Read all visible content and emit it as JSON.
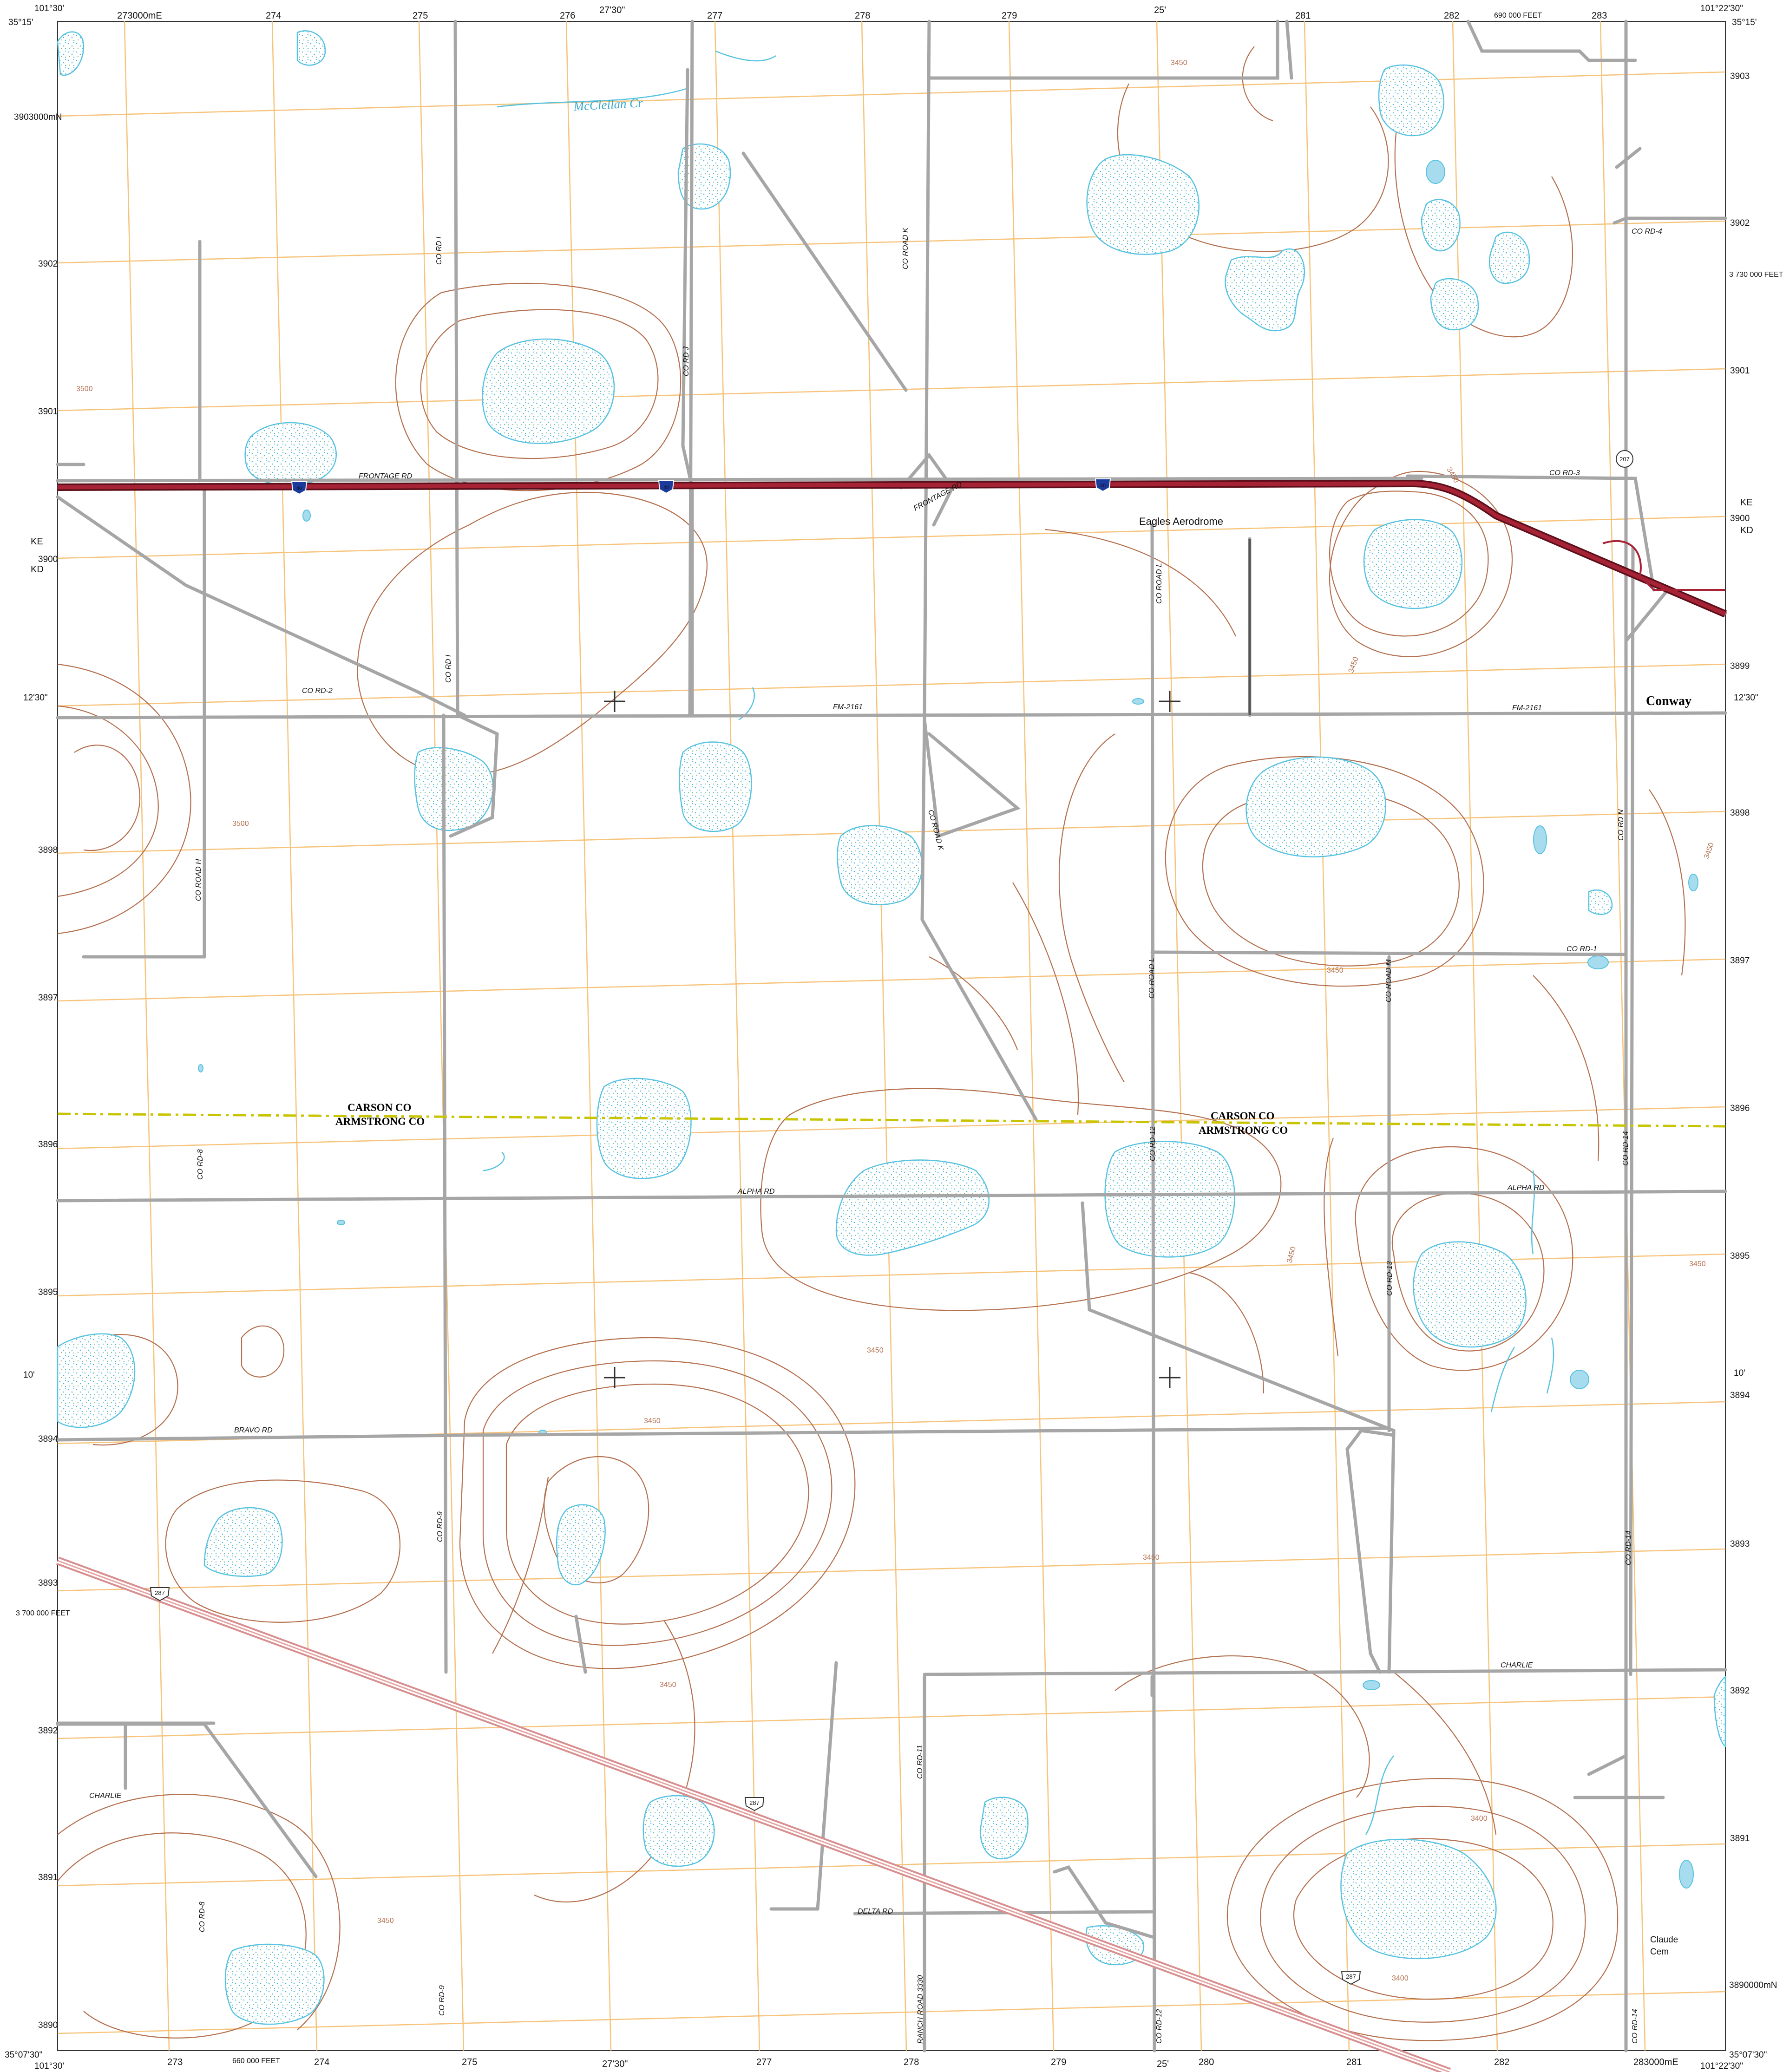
{
  "colors": {
    "background": "#ffffff",
    "grid": "#f6c37a",
    "contour": "#b4704f",
    "road": "#a6a6a6",
    "interstate": "#8e1b2b",
    "us_highway": "#e0a6a6",
    "water": "#58c3e0",
    "boundary": "#c9c400",
    "text": "#111111"
  },
  "corners": {
    "top_left": "101°30'",
    "top_left_lat": "35°15'",
    "top_right": "101°22'30\"",
    "top_right_lat": "35°15'",
    "bottom_left": "101°30'",
    "bottom_left_lat": "35°07'30\"",
    "bottom_right": "101°22'30\"",
    "bottom_right_lat": "35°07'30\""
  },
  "top_ticks": [
    "273000mE",
    "274",
    "275",
    "276",
    "27'30\"",
    "277",
    "278",
    "279",
    "25'",
    "281",
    "282",
    "690 000 FEET",
    "283"
  ],
  "bottom_ticks": [
    "273",
    "660 000 FEET",
    "274",
    "275",
    "27'30\"",
    "277",
    "278",
    "279",
    "25'",
    "280",
    "281",
    "282",
    "283000mE"
  ],
  "left_ticks": [
    "3903000mN",
    "3902",
    "3901",
    "3900",
    "12'30\"",
    "3898",
    "3897",
    "3896",
    "3895",
    "10'",
    "3894",
    "3893",
    "3 700 000 FEET",
    "3892",
    "3891",
    "3890"
  ],
  "right_ticks": [
    "3903",
    "3902",
    "3 730 000 FEET",
    "3901",
    "3900",
    "3899",
    "12'30\"",
    "3898",
    "3897",
    "3896",
    "3895",
    "10'",
    "3894",
    "3893",
    "3892",
    "3891",
    "3890000mN"
  ],
  "edge_labels": {
    "left_ke": "KE",
    "left_kd": "KD",
    "right_ke": "KE",
    "right_kd": "KD"
  },
  "place_names": {
    "creek": "McClellan Cr",
    "aerodrome": "Eagles Aerodrome",
    "town": "Conway",
    "cemetery_line1": "Claude",
    "cemetery_line2": "Cem"
  },
  "county_labels": {
    "north_1": "CARSON CO",
    "south_1": "ARMSTRONG CO",
    "north_2": "CARSON CO",
    "south_2": "ARMSTRONG CO"
  },
  "road_labels": {
    "frontage_1": "FRONTAGE RD",
    "frontage_2": "FRONTAGE RD",
    "co_rd_3": "CO RD-3",
    "co_rd_4": "CO RD-4",
    "co_rd_2": "CO RD-2",
    "fm2161_w": "FM-2161",
    "fm2161_e": "FM-2161",
    "co_rd_1": "CO RD-1",
    "alpha_w": "ALPHA RD",
    "alpha_e": "ALPHA RD",
    "bravo": "BRAVO RD",
    "charlie_e": "CHARLIE",
    "charlie_w": "CHARLIE",
    "delta": "DELTA RD",
    "co_rd_i_n": "CO RD I",
    "co_rd_i_s": "CO RD I",
    "co_rd_j": "CO RD J",
    "co_road_k_n": "CO ROAD K",
    "co_road_k_s": "CO ROAD K",
    "co_road_l_n": "CO ROAD L",
    "co_road_l_s": "CO ROAD L",
    "co_road_h": "CO ROAD H",
    "co_road_m": "CO ROAD M",
    "co_rd_n": "CO RD N",
    "co_rd_8_n": "CO RD-8",
    "co_rd_8_s": "CO RD-8",
    "co_rd_9_n": "CO RD-9",
    "co_rd_9_s": "CO RD-9",
    "co_rd_11": "CO RD-11",
    "co_rd_12_n": "CO RD-12",
    "co_rd_12_s": "CO RD-12",
    "co_rd_13": "CO RD-13",
    "co_rd_14_n": "CO RD-14",
    "co_rd_14_m": "CO RD-14",
    "co_rd_14_s": "CO RD-14",
    "ranch": "RANCH ROAD 3330"
  },
  "shields": {
    "i40": "40",
    "us287": "287",
    "sh207": "207"
  },
  "contour_values": [
    "3450",
    "3500",
    "3450",
    "3500",
    "3450",
    "3450",
    "3450",
    "3450",
    "3450",
    "3450",
    "3450",
    "3450",
    "3400",
    "3400",
    "3450",
    "3450"
  ]
}
